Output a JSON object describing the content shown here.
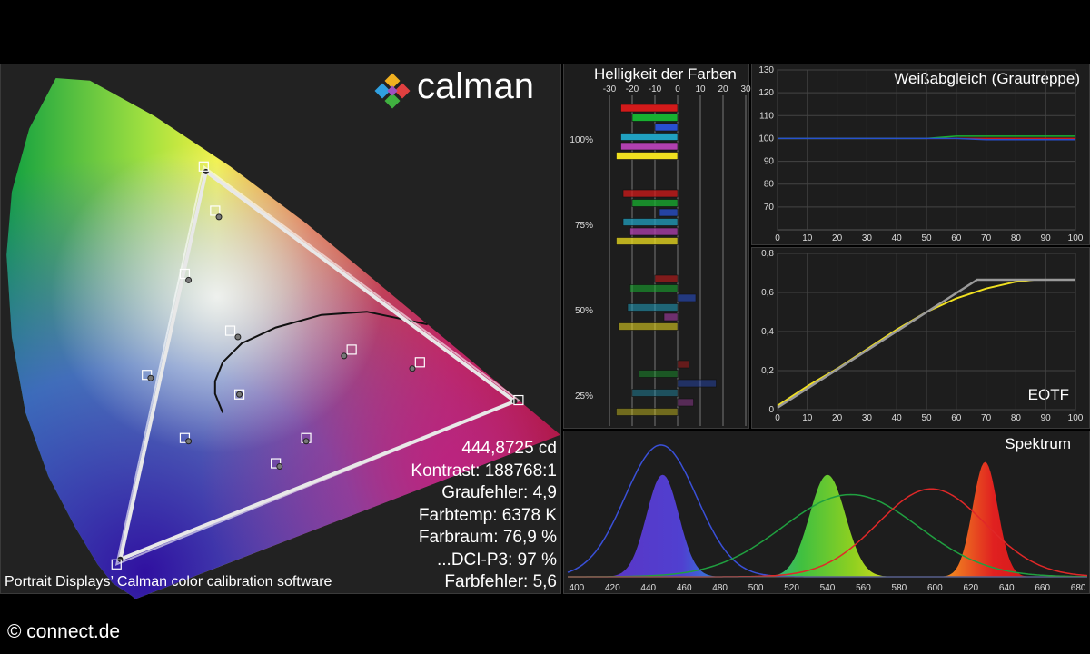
{
  "brand": {
    "watermark": "© connect.de"
  },
  "calman": {
    "logo_text": "calman",
    "caption": "Portrait Displays’ Calman color calibration software",
    "stats": [
      "444,8725 cd",
      "Kontrast: 188768:1",
      "Graufehler: 4,9",
      "Farbtemp: 6378 K",
      "Farbraum: 76,9 %",
      "...DCI-P3: 97 %",
      "Farbfehler: 5,6"
    ]
  },
  "colors": {
    "red": "#d21a1a",
    "green": "#18b030",
    "blue": "#2850d0",
    "yellow": "#f0e020",
    "gray": "#9a9a9a"
  },
  "chart_data": [
    {
      "type": "scatter",
      "name": "cie_gamut",
      "title": "",
      "target_triangle": [
        [
          0.68,
          0.32
        ],
        [
          0.265,
          0.69
        ],
        [
          0.15,
          0.06
        ]
      ],
      "measured_triangle": [
        [
          0.675,
          0.318
        ],
        [
          0.268,
          0.682
        ],
        [
          0.155,
          0.068
        ]
      ],
      "targets": [
        [
          0.312,
          0.329
        ],
        [
          0.46,
          0.4
        ],
        [
          0.55,
          0.38
        ],
        [
          0.4,
          0.26
        ],
        [
          0.24,
          0.26
        ],
        [
          0.3,
          0.43
        ],
        [
          0.24,
          0.52
        ],
        [
          0.28,
          0.62
        ],
        [
          0.19,
          0.36
        ],
        [
          0.36,
          0.22
        ]
      ],
      "measured": [
        [
          0.312,
          0.329
        ],
        [
          0.45,
          0.39
        ],
        [
          0.54,
          0.37
        ],
        [
          0.4,
          0.255
        ],
        [
          0.245,
          0.255
        ],
        [
          0.31,
          0.42
        ],
        [
          0.245,
          0.51
        ],
        [
          0.285,
          0.61
        ],
        [
          0.195,
          0.355
        ],
        [
          0.365,
          0.215
        ]
      ]
    },
    {
      "type": "bar",
      "title": "Helligkeit der Farben",
      "xlim": [
        -30,
        30
      ],
      "x_ticks": [
        "-30",
        "-20",
        "-10",
        "0",
        "10",
        "20",
        "30"
      ],
      "group_labels": [
        "100%",
        "75%",
        "50%",
        "25%"
      ],
      "groups": [
        {
          "label": "100%",
          "values": [
            -25,
            -20,
            -10,
            -25,
            -25,
            -27
          ]
        },
        {
          "label": "75%",
          "values": [
            -24,
            -20,
            -8,
            -24,
            -21,
            -27
          ]
        },
        {
          "label": "50%",
          "values": [
            -10,
            -21,
            8,
            -22,
            -6,
            -26
          ]
        },
        {
          "label": "25%",
          "values": [
            5,
            -17,
            17,
            -20,
            7,
            -27
          ]
        }
      ]
    },
    {
      "type": "line",
      "title": "Weißabgleich (Grautreppe)",
      "xlim": [
        0,
        100
      ],
      "ylim": [
        60,
        130
      ],
      "x_ticks": [
        "0",
        "10",
        "20",
        "30",
        "40",
        "50",
        "60",
        "70",
        "80",
        "90",
        "100"
      ],
      "y_ticks": [
        "130",
        "120",
        "110",
        "100",
        "90",
        "80",
        "70"
      ],
      "x": [
        0,
        10,
        20,
        30,
        40,
        50,
        60,
        70,
        80,
        90,
        100
      ],
      "series": [
        {
          "values": [
            100,
            100,
            100,
            100,
            100,
            100,
            100,
            100,
            100,
            100,
            100
          ]
        },
        {
          "values": [
            100,
            100,
            100,
            100,
            100,
            100,
            101,
            101,
            101,
            101,
            101
          ]
        },
        {
          "values": [
            100,
            100,
            100,
            100,
            100,
            100,
            100,
            99.5,
            99.5,
            99.5,
            99.5
          ]
        }
      ]
    },
    {
      "type": "line",
      "title": "EOTF",
      "xlim": [
        0,
        100
      ],
      "ylim": [
        0,
        0.8
      ],
      "x_ticks": [
        "0",
        "10",
        "20",
        "30",
        "40",
        "50",
        "60",
        "70",
        "80",
        "90",
        "100"
      ],
      "y_ticks": [
        "0,8",
        "0,6",
        "0,4",
        "0,2",
        "0"
      ],
      "series": [
        {
          "x": [
            0,
            67,
            100
          ],
          "values": [
            0.01,
            0.665,
            0.665
          ]
        },
        {
          "x": [
            0,
            10,
            20,
            30,
            40,
            50,
            60,
            70,
            80,
            86,
            100
          ],
          "values": [
            0.02,
            0.12,
            0.21,
            0.31,
            0.41,
            0.5,
            0.57,
            0.62,
            0.655,
            0.665,
            0.665
          ]
        }
      ]
    },
    {
      "type": "line",
      "title": "Spektrum",
      "xlim": [
        395,
        685
      ],
      "x_ticks": [
        "400",
        "420",
        "440",
        "460",
        "480",
        "500",
        "520",
        "540",
        "560",
        "580",
        "600",
        "620",
        "640",
        "660",
        "680"
      ],
      "series": [
        {
          "center": 447,
          "width": 20,
          "peak": 0.93
        },
        {
          "center": 553,
          "width": 38,
          "peak": 0.58
        },
        {
          "center": 598,
          "width": 30,
          "peak": 0.62
        },
        {
          "center": 448,
          "width": 9,
          "peak": 0.72
        },
        {
          "center": 540,
          "width": 10,
          "peak": 0.72
        },
        {
          "center": 628,
          "width": 7,
          "peak": 0.81
        }
      ]
    }
  ]
}
